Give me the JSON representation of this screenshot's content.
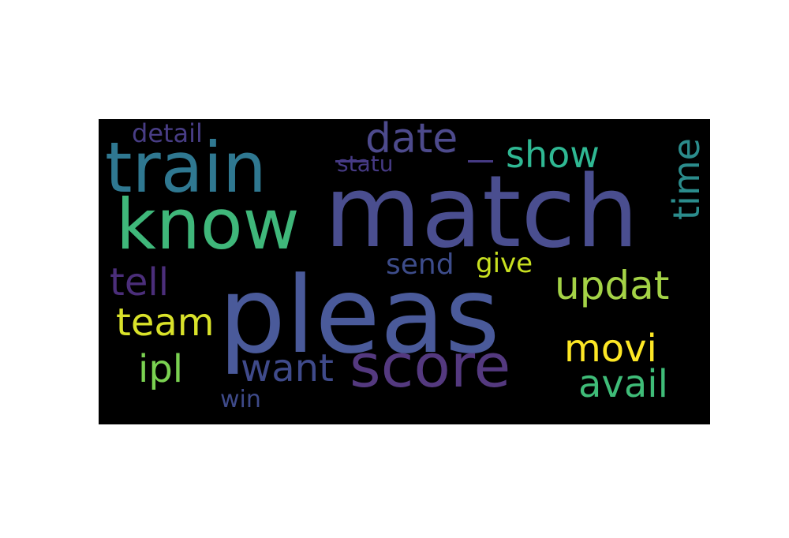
{
  "words": [
    {
      "text": "match",
      "color": "#4a4e8f"
    },
    {
      "text": "pleas",
      "color": "#4a5a9a"
    },
    {
      "text": "train",
      "color": "#2f7891"
    },
    {
      "text": "know",
      "color": "#3fb77a"
    },
    {
      "text": "score",
      "color": "#54397f"
    },
    {
      "text": "date",
      "color": "#4d4a8c"
    },
    {
      "text": "show",
      "color": "#2fb893"
    },
    {
      "text": "time",
      "color": "#2b8c8c"
    },
    {
      "text": "updat",
      "color": "#a4d346"
    },
    {
      "text": "movi",
      "color": "#fde725"
    },
    {
      "text": "avail",
      "color": "#3fbc78"
    },
    {
      "text": "team",
      "color": "#d9e22a"
    },
    {
      "text": "tell",
      "color": "#4b2e7a"
    },
    {
      "text": "ipl",
      "color": "#7ad151"
    },
    {
      "text": "want",
      "color": "#3f4a8a"
    },
    {
      "text": "send",
      "color": "#3d4c8a"
    },
    {
      "text": "give",
      "color": "#c8e020"
    },
    {
      "text": "detail",
      "color": "#483d85"
    },
    {
      "text": "statu",
      "color": "#463a84"
    },
    {
      "text": "win",
      "color": "#3e4a89"
    }
  ]
}
